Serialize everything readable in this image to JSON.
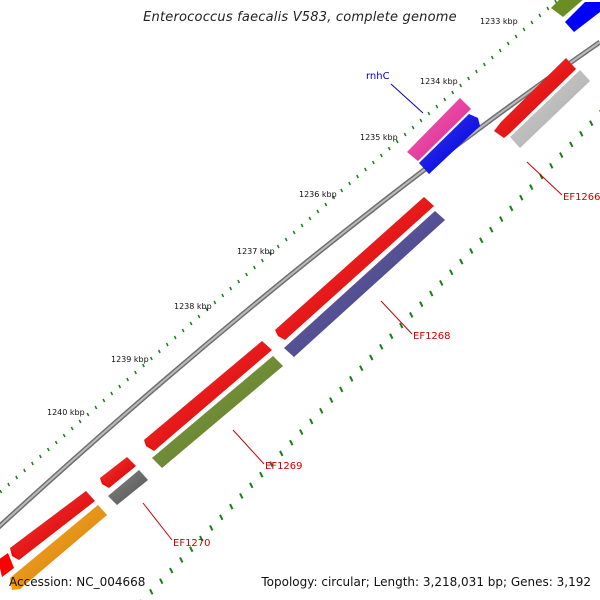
{
  "title": "Enterococcus faecalis V583, complete genome",
  "footer": {
    "accession": "Accession: NC_004668",
    "summary": "Topology: circular; Length: 3,218,031 bp; Genes: 3,192"
  },
  "ruler_labels": [
    "1233 kbp",
    "1234 kbp",
    "1235 kbp",
    "1236 kbp",
    "1237 kbp",
    "1238 kbp",
    "1239 kbp",
    "1240 kbp"
  ],
  "gene_labels": {
    "rnhC": "rnhC",
    "ef1266": "EF1266",
    "ef1268": "EF1268",
    "ef1269": "EF1269",
    "ef1270": "EF1270"
  },
  "colors": {
    "backbone": "#8c8c8c",
    "cds_forward": "#ff0000",
    "cds_reverse_red": "#ff0000",
    "rnhC": "#ff33aa",
    "blue": "#0000ff",
    "gray_feature": "#cccccc",
    "ef1268": "#4a4499",
    "ef1269": "#6b8e23",
    "ef1270": "#666666",
    "olive": "#6b8e23",
    "orange": "#ff9900",
    "tick_major": "#1a7f1a",
    "tick_minor": "#1a7f1a",
    "label_red": "#cc0000",
    "label_blue": "#0000cc"
  }
}
